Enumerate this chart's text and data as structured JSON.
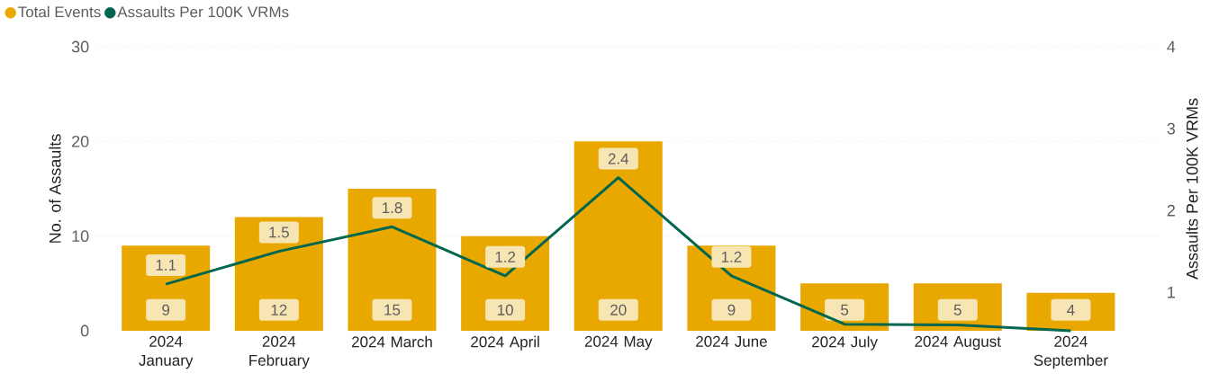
{
  "chart_data": {
    "type": "bar",
    "ylabel": "No. of Assaults",
    "y2label": "Assaults Per 100K VRMs",
    "categories": [
      "2024 January",
      "2024 February",
      "2024 March",
      "2024 April",
      "2024 May",
      "2024 June",
      "2024 July",
      "2024 August",
      "2024 September"
    ],
    "series": [
      {
        "name": "Total Events",
        "type": "bar",
        "color": "#e8a800",
        "values": [
          9,
          12,
          15,
          10,
          20,
          9,
          5,
          5,
          4
        ],
        "value_labels": [
          "9",
          "12",
          "15",
          "10",
          "20",
          "9",
          "5",
          "5",
          "4"
        ]
      },
      {
        "name": "Assaults Per 100K VRMs",
        "type": "line",
        "axis": "y2",
        "color": "#00664f",
        "values": [
          1.1,
          1.5,
          1.8,
          1.2,
          2.4,
          1.2,
          0.61,
          0.6,
          0.53
        ],
        "value_labels": [
          "1.1",
          "1.5",
          "1.8",
          "1.2",
          "2.4",
          "1.2",
          null,
          null,
          null
        ]
      }
    ],
    "ylim": [
      0,
      30
    ],
    "yticks": [
      0,
      10,
      20,
      30
    ],
    "y2lim": [
      0.53,
      4
    ],
    "y2ticks": [
      {
        "value": 1,
        "label": "1"
      },
      {
        "value": 2,
        "label": "2"
      },
      {
        "value": 3,
        "label": "3"
      },
      {
        "value": 4,
        "label": "4"
      }
    ],
    "grid": "y",
    "legend": "top left",
    "marker": "none",
    "line_style": "solid"
  }
}
